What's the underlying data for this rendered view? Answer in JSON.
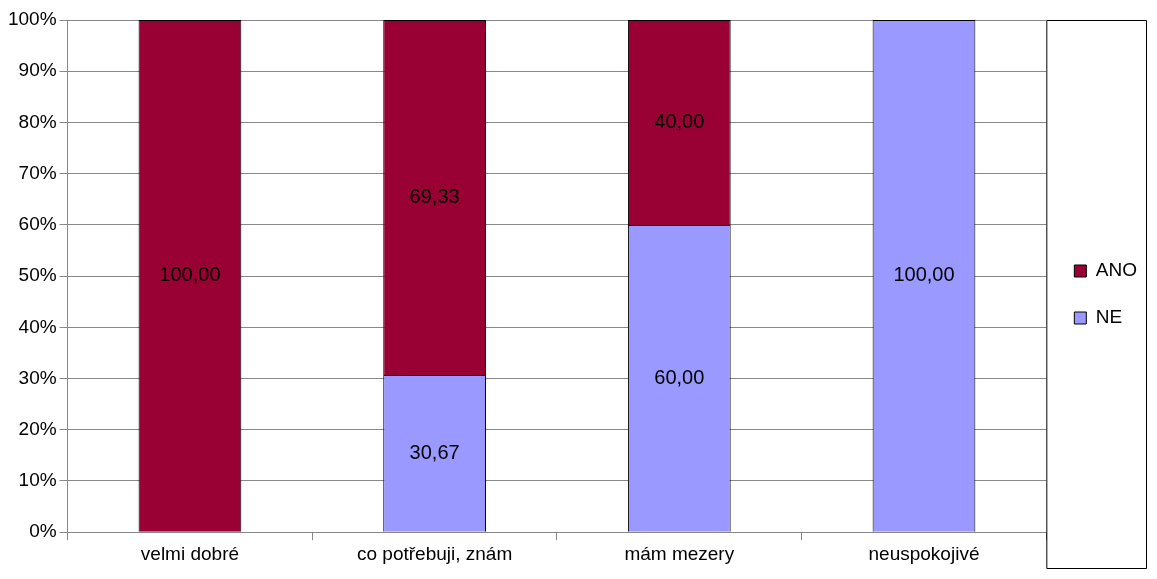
{
  "chart_data": {
    "type": "bar",
    "stacked": true,
    "categories": [
      "velmi dobré",
      "co potřebuji, znám",
      "mám mezery",
      "neuspokojivé"
    ],
    "series": [
      {
        "name": "NE",
        "color": "#9999ff",
        "values": [
          0,
          30.67,
          60,
          100
        ],
        "value_labels": [
          null,
          "30,67",
          "60,00",
          "100,00"
        ]
      },
      {
        "name": "ANO",
        "color": "#990033",
        "values": [
          100,
          69.33,
          40,
          0
        ],
        "value_labels": [
          "100,00",
          "69,33",
          "40,00",
          null
        ]
      }
    ],
    "ylim": [
      0,
      100
    ],
    "yticks": [
      {
        "value": 0,
        "label": "0%"
      },
      {
        "value": 10,
        "label": "10%"
      },
      {
        "value": 20,
        "label": "20%"
      },
      {
        "value": 30,
        "label": "30%"
      },
      {
        "value": 40,
        "label": "40%"
      },
      {
        "value": 50,
        "label": "50%"
      },
      {
        "value": 60,
        "label": "60%"
      },
      {
        "value": 70,
        "label": "70%"
      },
      {
        "value": 80,
        "label": "80%"
      },
      {
        "value": 90,
        "label": "90%"
      },
      {
        "value": 100,
        "label": "100%"
      }
    ],
    "grid": "y",
    "legend": "right"
  }
}
